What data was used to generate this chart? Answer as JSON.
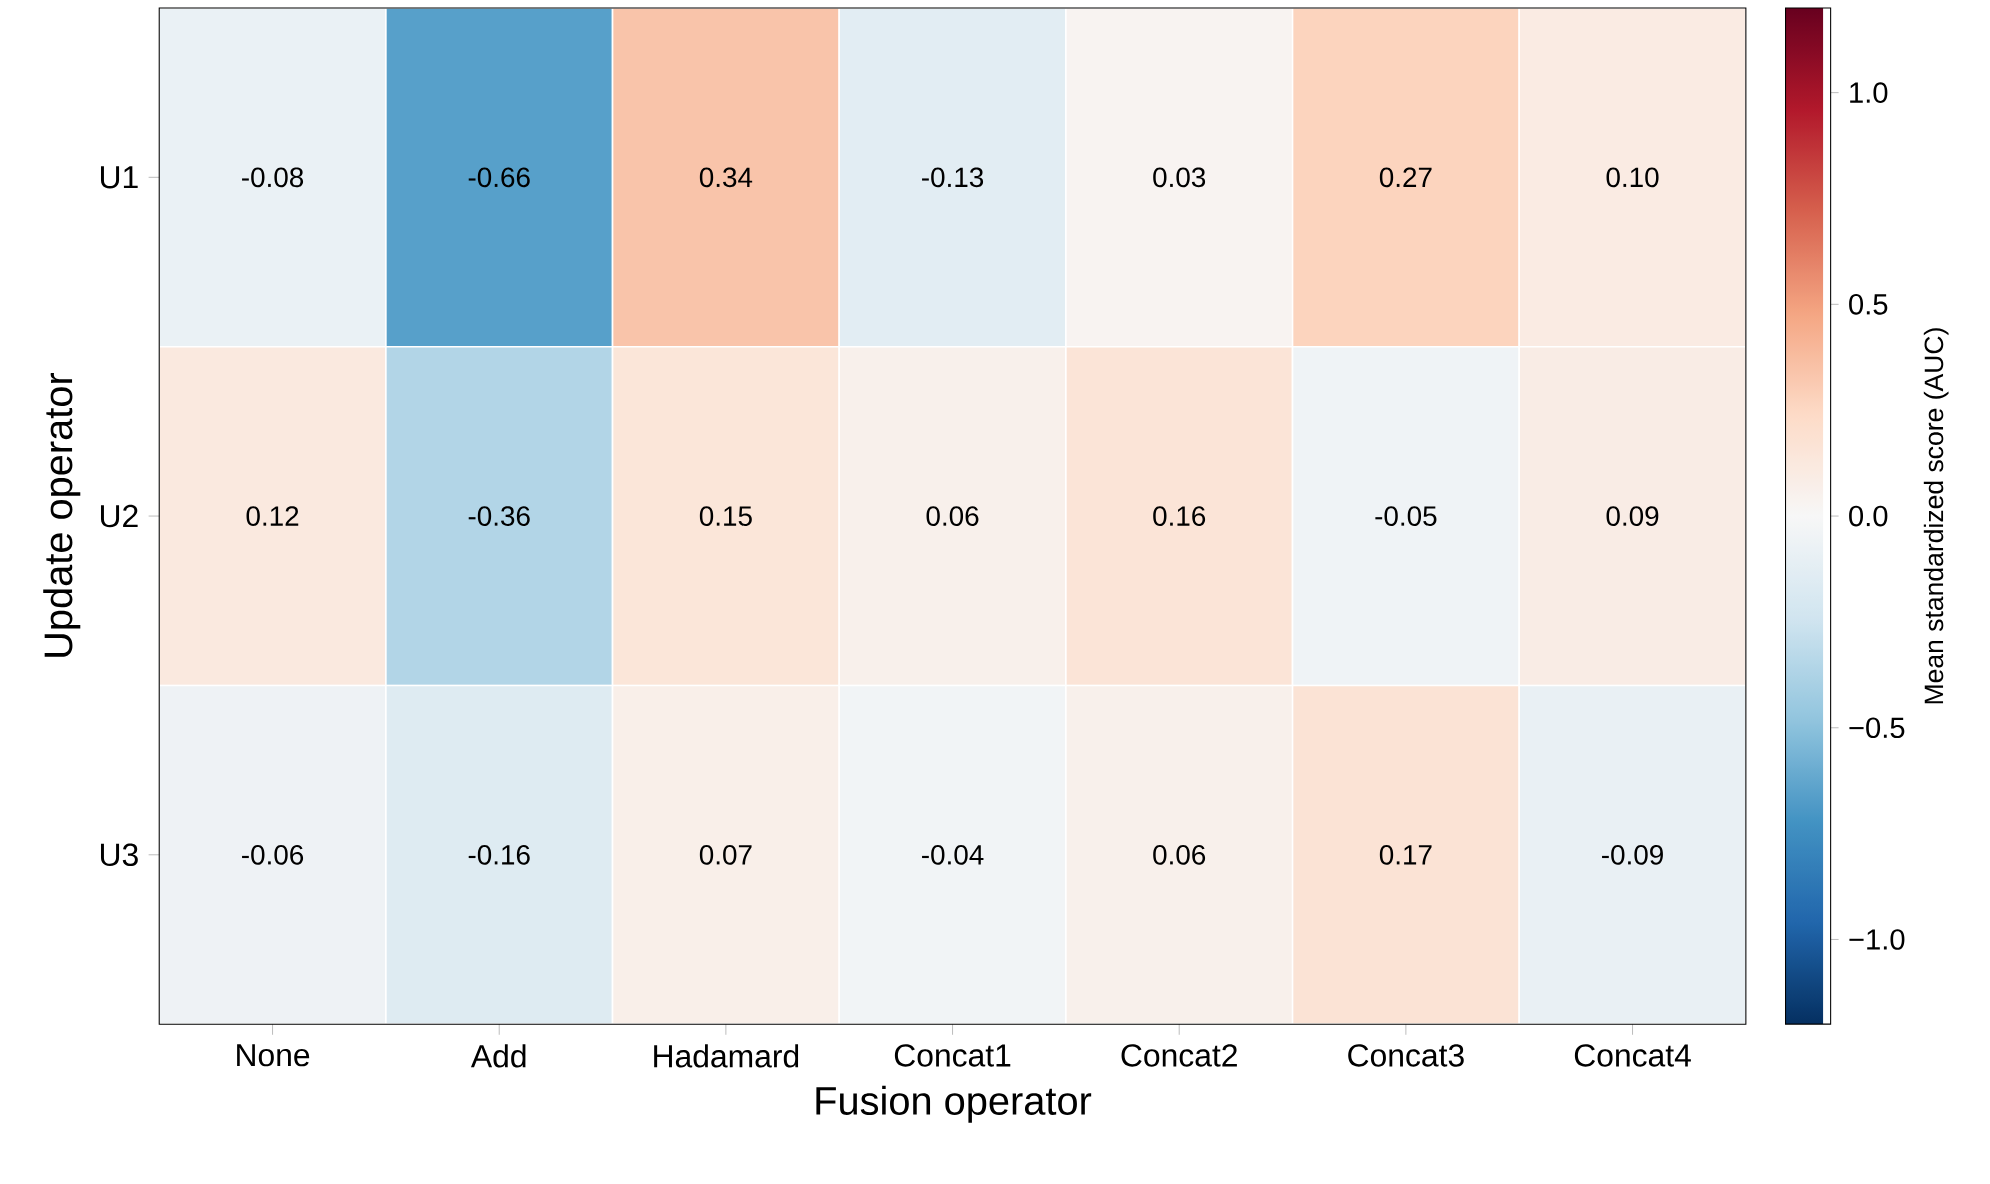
{
  "chart_data": {
    "type": "heatmap",
    "xlabel": "Fusion operator",
    "ylabel": "Update operator",
    "clabel": "Mean standardized score (AUC)",
    "categories": [
      "None",
      "Add",
      "Hadamard",
      "Concat1",
      "Concat2",
      "Concat3",
      "Concat4"
    ],
    "y_categories": [
      "U1",
      "U2",
      "U3"
    ],
    "cells": [
      [
        -0.08,
        -0.66,
        0.34,
        -0.13,
        0.03,
        0.27,
        0.1
      ],
      [
        0.12,
        -0.36,
        0.15,
        0.06,
        0.16,
        -0.05,
        0.09
      ],
      [
        -0.06,
        -0.16,
        0.07,
        -0.04,
        0.06,
        0.17,
        -0.09
      ]
    ],
    "cell_labels": [
      [
        "-0.08",
        "-0.66",
        "0.34",
        "-0.13",
        "0.03",
        "0.27",
        "0.10"
      ],
      [
        "0.12",
        "-0.36",
        "0.15",
        "0.06",
        "0.16",
        "-0.05",
        "0.09"
      ],
      [
        "-0.06",
        "-0.16",
        "0.07",
        "-0.04",
        "0.06",
        "0.17",
        "-0.09"
      ]
    ],
    "clim": [
      -1.2,
      1.2
    ],
    "cticks": [
      {
        "value": -1.0,
        "label": "−1.0"
      },
      {
        "value": -0.5,
        "label": "−0.5"
      },
      {
        "value": 0.0,
        "label": "0.0"
      },
      {
        "value": 0.5,
        "label": "0.5"
      },
      {
        "value": 1.0,
        "label": "1.0"
      }
    ]
  }
}
